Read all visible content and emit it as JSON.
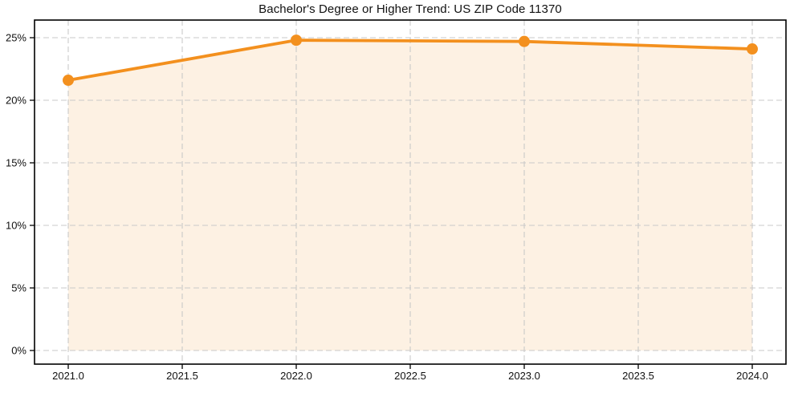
{
  "chart": {
    "title": "Bachelor's Degree or Higher Trend: US ZIP Code 11370"
  },
  "chart_data": {
    "type": "line",
    "title": "Bachelor's Degree or Higher Trend: US ZIP Code 11370",
    "x": [
      2021,
      2022,
      2023,
      2024
    ],
    "values": [
      21.6,
      24.8,
      24.7,
      24.1
    ],
    "area_fill": true,
    "marker": "circle",
    "xlabel": "",
    "ylabel": "",
    "xlim": [
      2020.85,
      2024.15
    ],
    "ylim": [
      -1.1,
      26.4
    ],
    "xticks": {
      "values": [
        2021.0,
        2021.5,
        2022.0,
        2022.5,
        2023.0,
        2023.5,
        2024.0
      ],
      "labels": [
        "2021.0",
        "2021.5",
        "2022.0",
        "2022.5",
        "2023.0",
        "2023.5",
        "2024.0"
      ]
    },
    "yticks": {
      "values": [
        0,
        5,
        10,
        15,
        20,
        25
      ],
      "labels": [
        "0%",
        "5%",
        "10%",
        "15%",
        "20%",
        "25%"
      ]
    },
    "grid": true,
    "grid_style": "dashed",
    "legend": false,
    "style": {
      "line_color": "#F3901E",
      "marker_color": "#F3901E",
      "fill_color": "#FDF1E3",
      "grid_color": "#C9C9C9",
      "spine_color": "#000000",
      "text_color": "#111111"
    }
  }
}
